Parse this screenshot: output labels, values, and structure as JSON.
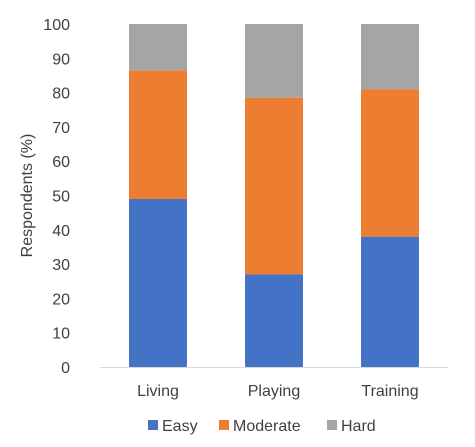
{
  "chart_data": {
    "type": "bar",
    "stacked": true,
    "categories": [
      "Living",
      "Playing",
      "Training"
    ],
    "series": [
      {
        "name": "Easy",
        "values": [
          49,
          27,
          38
        ],
        "color": "#4472C4"
      },
      {
        "name": "Moderate",
        "values": [
          37.5,
          51.5,
          43
        ],
        "color": "#ED7D31"
      },
      {
        "name": "Hard",
        "values": [
          13.5,
          21.5,
          19
        ],
        "color": "#A5A5A5"
      }
    ],
    "title": "",
    "xlabel": "",
    "ylabel": "Respondents (%)",
    "ylim": [
      0,
      100
    ],
    "yticks": [
      0,
      10,
      20,
      30,
      40,
      50,
      60,
      70,
      80,
      90,
      100
    ],
    "grid": false,
    "legend_position": "bottom"
  }
}
